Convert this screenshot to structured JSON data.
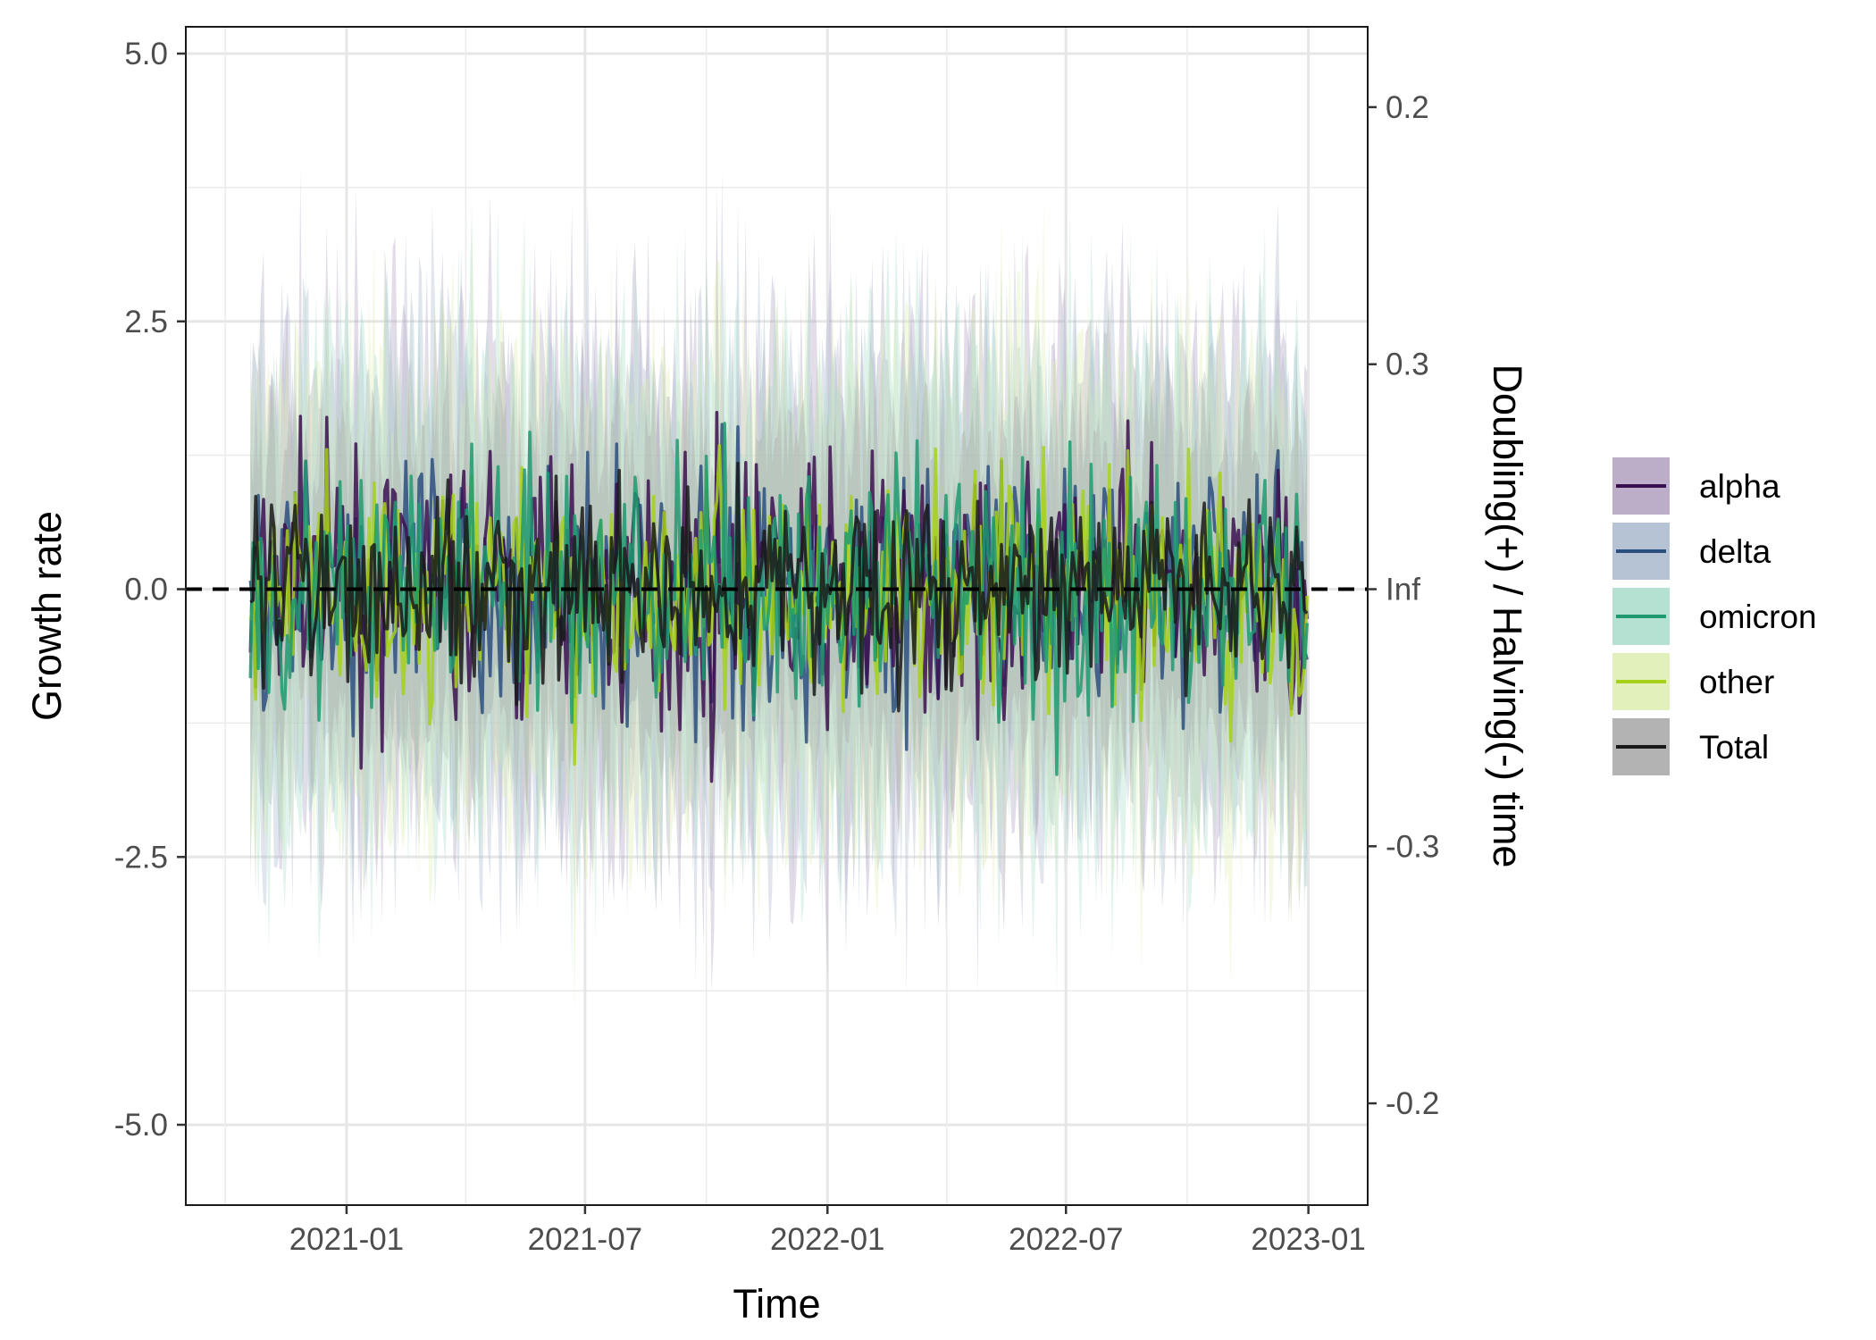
{
  "chart_data": {
    "type": "line",
    "title": "",
    "xlabel": "Time",
    "ylabel": "Growth rate",
    "y2label": "Doubling(+) / Halving(-) time",
    "x_range": [
      "2020-10-20",
      "2023-01-01"
    ],
    "xlim": [
      "2020-09-01",
      "2023-02-15"
    ],
    "ylim": [
      -5.75,
      5.25
    ],
    "x_ticks": [
      "2021-01",
      "2021-07",
      "2022-01",
      "2022-07",
      "2023-01"
    ],
    "y_ticks": [
      "5.0",
      "2.5",
      "0.0",
      "-2.5",
      "-5.0"
    ],
    "y2_ticks": [
      "0.2",
      "0.3",
      "Inf",
      "-0.3",
      "-0.2"
    ],
    "grid": true,
    "legend_position": "right",
    "reference_line": {
      "y": 0,
      "style": "dashed"
    },
    "series": [
      {
        "name": "alpha",
        "color": "#3b0f4f",
        "ribbon_color": "#b09fbf",
        "mean_growth": 0.0,
        "noise_sd": 0.6,
        "ribbon_halfwidth": 1.8
      },
      {
        "name": "delta",
        "color": "#2b4f7e",
        "ribbon_color": "#a8b8cd",
        "mean_growth": 0.0,
        "noise_sd": 0.6,
        "ribbon_halfwidth": 1.8
      },
      {
        "name": "omicron",
        "color": "#1f9a70",
        "ribbon_color": "#a8dccb",
        "mean_growth": 0.0,
        "noise_sd": 0.6,
        "ribbon_halfwidth": 1.8
      },
      {
        "name": "other",
        "color": "#a6d11a",
        "ribbon_color": "#ddeeb0",
        "mean_growth": 0.0,
        "noise_sd": 0.6,
        "ribbon_halfwidth": 1.8
      },
      {
        "name": "Total",
        "color": "#1a1a1a",
        "ribbon_color": "#a6a6a6",
        "mean_growth": 0.0,
        "noise_sd": 0.45,
        "ribbon_halfwidth": 1.2
      }
    ]
  }
}
